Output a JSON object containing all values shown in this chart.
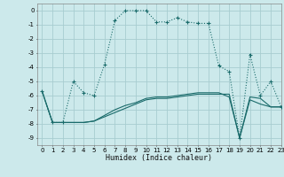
{
  "title": "",
  "xlabel": "Humidex (Indice chaleur)",
  "xlim": [
    -0.5,
    23
  ],
  "ylim": [
    -9.5,
    0.5
  ],
  "yticks": [
    0,
    -1,
    -2,
    -3,
    -4,
    -5,
    -6,
    -7,
    -8,
    -9
  ],
  "xticks": [
    0,
    1,
    2,
    3,
    4,
    5,
    6,
    7,
    8,
    9,
    10,
    11,
    12,
    13,
    14,
    15,
    16,
    17,
    18,
    19,
    20,
    21,
    22,
    23
  ],
  "background_color": "#cce9eb",
  "grid_color": "#a8cdd0",
  "line_color": "#1a6b6b",
  "line1_x": [
    0,
    1,
    2,
    3,
    4,
    5,
    6,
    7,
    8,
    9,
    10,
    11,
    12,
    13,
    14,
    15,
    16,
    17,
    18,
    19,
    20,
    21,
    22,
    23
  ],
  "line1_y": [
    -5.7,
    -7.9,
    -7.9,
    -5.0,
    -5.8,
    -6.0,
    -3.8,
    -0.7,
    0.0,
    0.0,
    0.0,
    -0.8,
    -0.8,
    -0.5,
    -0.8,
    -0.9,
    -0.9,
    -3.9,
    -4.3,
    -9.0,
    -3.1,
    -6.0,
    -5.0,
    -6.8
  ],
  "line2_x": [
    0,
    1,
    2,
    3,
    4,
    5,
    6,
    7,
    8,
    9,
    10,
    11,
    12,
    13,
    14,
    15,
    16,
    17,
    18,
    19,
    20,
    21,
    22,
    23
  ],
  "line2_y": [
    -5.7,
    -7.9,
    -7.9,
    -7.9,
    -7.9,
    -7.8,
    -7.5,
    -7.2,
    -6.9,
    -6.6,
    -6.3,
    -6.2,
    -6.2,
    -6.1,
    -6.0,
    -5.9,
    -5.9,
    -5.9,
    -5.9,
    -9.0,
    -6.1,
    -6.2,
    -6.8,
    -6.8
  ],
  "line3_x": [
    0,
    1,
    2,
    3,
    4,
    5,
    6,
    7,
    8,
    9,
    10,
    11,
    12,
    13,
    14,
    15,
    16,
    17,
    18,
    19,
    20,
    21,
    22,
    23
  ],
  "line3_y": [
    -5.7,
    -7.9,
    -7.9,
    -7.9,
    -7.9,
    -7.8,
    -7.4,
    -7.0,
    -6.7,
    -6.5,
    -6.2,
    -6.1,
    -6.1,
    -6.0,
    -5.9,
    -5.8,
    -5.8,
    -5.8,
    -6.1,
    -9.0,
    -6.3,
    -6.6,
    -6.8,
    -6.8
  ]
}
